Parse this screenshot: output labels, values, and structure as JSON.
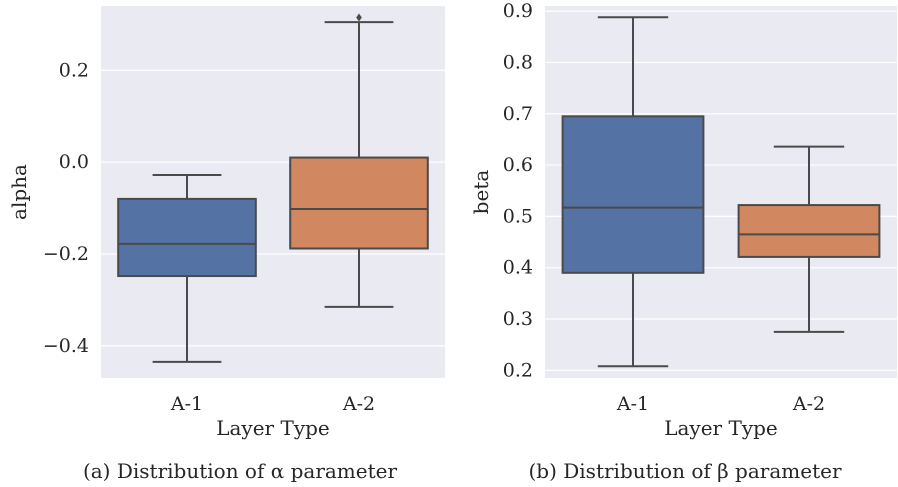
{
  "chart_data": [
    {
      "type": "box",
      "xlabel": "Layer Type",
      "ylabel": "alpha",
      "caption": "(a) Distribution of α parameter",
      "ylim": [
        -0.47,
        0.34
      ],
      "yticks": [
        -0.4,
        -0.2,
        0.0,
        0.2
      ],
      "ytick_labels": [
        "−0.4",
        "−0.2",
        "0.0",
        "0.2"
      ],
      "grid": true,
      "categories": [
        "A-1",
        "A-2"
      ],
      "boxes": [
        {
          "label": "A-1",
          "whisker_low": -0.435,
          "q1": -0.248,
          "median": -0.178,
          "q3": -0.08,
          "whisker_high": -0.028,
          "outliers": [],
          "color": "#5572a5"
        },
        {
          "label": "A-2",
          "whisker_low": -0.315,
          "q1": -0.188,
          "median": -0.102,
          "q3": 0.01,
          "whisker_high": 0.305,
          "outliers": [
            0.315
          ],
          "color": "#d1875f"
        }
      ]
    },
    {
      "type": "box",
      "xlabel": "Layer Type",
      "ylabel": "beta",
      "caption": "(b) Distribution of β parameter",
      "ylim": [
        0.185,
        0.91
      ],
      "yticks": [
        0.2,
        0.3,
        0.4,
        0.5,
        0.6,
        0.7,
        0.8,
        0.9
      ],
      "ytick_labels": [
        "0.2",
        "0.3",
        "0.4",
        "0.5",
        "0.6",
        "0.7",
        "0.8",
        "0.9"
      ],
      "grid": true,
      "categories": [
        "A-1",
        "A-2"
      ],
      "boxes": [
        {
          "label": "A-1",
          "whisker_low": 0.208,
          "q1": 0.39,
          "median": 0.517,
          "q3": 0.695,
          "whisker_high": 0.888,
          "outliers": [],
          "color": "#5572a5"
        },
        {
          "label": "A-2",
          "whisker_low": 0.275,
          "q1": 0.421,
          "median": 0.465,
          "q3": 0.522,
          "whisker_high": 0.636,
          "outliers": [],
          "color": "#d1875f"
        }
      ]
    }
  ],
  "style": {
    "plot_bg": "#eaeaf2",
    "grid_color": "#ffffff",
    "line_color": "#4a4a4a",
    "text_color": "#262626"
  }
}
